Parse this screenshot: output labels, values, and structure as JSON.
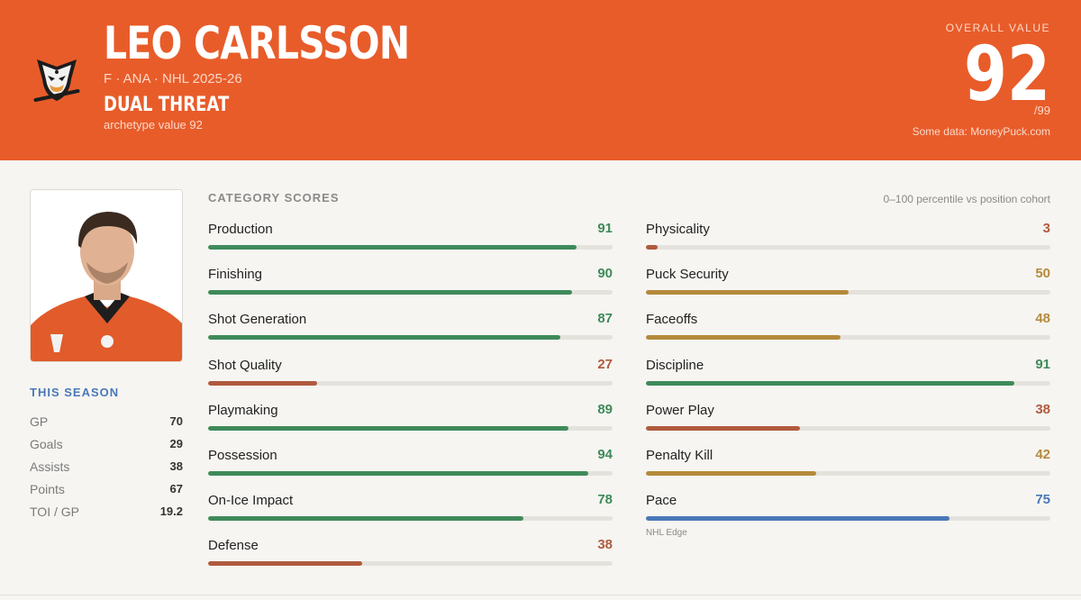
{
  "header": {
    "player_name": "LEO CARLSSON",
    "meta": "F · ANA · NHL 2025-26",
    "archetype": "DUAL THREAT",
    "archetype_sub": "archetype value 92",
    "overall_label": "OVERALL VALUE",
    "overall_value": "92",
    "overall_max": "/99",
    "source": "Some data: MoneyPuck.com",
    "logo_icon": "anaheim-ducks-logo",
    "bg_color": "#e85c2a"
  },
  "player": {
    "photo_icon": "player-headshot"
  },
  "season": {
    "title": "THIS SEASON",
    "stats": [
      {
        "label": "GP",
        "value": "70"
      },
      {
        "label": "Goals",
        "value": "29"
      },
      {
        "label": "Assists",
        "value": "38"
      },
      {
        "label": "Points",
        "value": "67"
      },
      {
        "label": "TOI / GP",
        "value": "19.2"
      }
    ]
  },
  "categories": {
    "title": "CATEGORY SCORES",
    "note": "0–100 percentile vs position cohort",
    "colors": {
      "green": "#3f8a5a",
      "gold": "#b58a3c",
      "red": "#b05a3e",
      "blue": "#4a78b8"
    },
    "left": [
      {
        "label": "Production",
        "value": "91",
        "pct": 91,
        "color": "green"
      },
      {
        "label": "Finishing",
        "value": "90",
        "pct": 90,
        "color": "green"
      },
      {
        "label": "Shot Generation",
        "value": "87",
        "pct": 87,
        "color": "green"
      },
      {
        "label": "Shot Quality",
        "value": "27",
        "pct": 27,
        "color": "red"
      },
      {
        "label": "Playmaking",
        "value": "89",
        "pct": 89,
        "color": "green"
      },
      {
        "label": "Possession",
        "value": "94",
        "pct": 94,
        "color": "green"
      },
      {
        "label": "On-Ice Impact",
        "value": "78",
        "pct": 78,
        "color": "green"
      },
      {
        "label": "Defense",
        "value": "38",
        "pct": 38,
        "color": "red"
      }
    ],
    "right": [
      {
        "label": "Physicality",
        "value": "3",
        "pct": 3,
        "color": "red"
      },
      {
        "label": "Puck Security",
        "value": "50",
        "pct": 50,
        "color": "gold"
      },
      {
        "label": "Faceoffs",
        "value": "48",
        "pct": 48,
        "color": "gold"
      },
      {
        "label": "Discipline",
        "value": "91",
        "pct": 91,
        "color": "green"
      },
      {
        "label": "Power Play",
        "value": "38",
        "pct": 38,
        "color": "red"
      },
      {
        "label": "Penalty Kill",
        "value": "42",
        "pct": 42,
        "color": "gold"
      },
      {
        "label": "Pace",
        "value": "75",
        "pct": 75,
        "color": "blue",
        "note": "NHL Edge"
      }
    ]
  }
}
